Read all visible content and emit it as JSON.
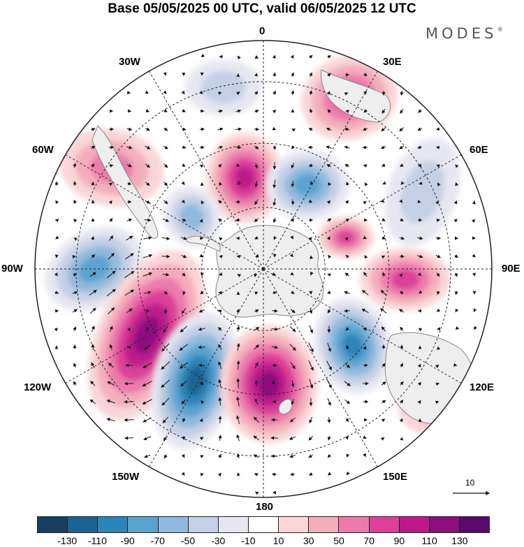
{
  "title": "Base 05/05/2025 00 UTC, valid 06/05/2025 12 UTC",
  "logo": "MODES",
  "logo_mark": "®",
  "projection": "south-polar-stereographic",
  "meridian_labels": {
    "lon_0": "0",
    "lon_30e": "30E",
    "lon_60e": "60E",
    "lon_90e": "90E",
    "lon_120e": "120E",
    "lon_150e": "150E",
    "lon_180": "180",
    "lon_150w": "150W",
    "lon_120w": "120W",
    "lon_90w": "90W",
    "lon_60w": "60W",
    "lon_30w": "30W"
  },
  "reference_vector": "10",
  "colorbar": {
    "colors": [
      "#17405f",
      "#1c6393",
      "#2e84b8",
      "#5ba3cf",
      "#91b9db",
      "#c5d0e6",
      "#e7e7f1",
      "#ffffff",
      "#fad6d8",
      "#f4adbc",
      "#ec7bac",
      "#dc4098",
      "#bc1a8a",
      "#8e0f7e",
      "#5a0a6c"
    ],
    "ticks": [
      "-130",
      "-110",
      "-90",
      "-70",
      "-50",
      "-30",
      "-10",
      "10",
      "30",
      "50",
      "70",
      "90",
      "110",
      "130"
    ]
  },
  "anomaly_centers": [
    {
      "sign": "+",
      "value": 80,
      "pos": "near 0/30E, mid-latitudes"
    },
    {
      "sign": "-",
      "value": -40,
      "pos": "20W high"
    },
    {
      "sign": "+",
      "value": 70,
      "pos": "60W"
    },
    {
      "sign": "+",
      "value": 110,
      "pos": "10W"
    },
    {
      "sign": "-",
      "value": -80,
      "pos": "30E"
    },
    {
      "sign": "-",
      "value": -60,
      "pos": "60E"
    },
    {
      "sign": "-",
      "value": -50,
      "pos": "75W"
    },
    {
      "sign": "-",
      "value": -80,
      "pos": "100W"
    },
    {
      "sign": "+",
      "value": 80,
      "pos": "80E"
    },
    {
      "sign": "+",
      "value": 90,
      "pos": "95E"
    },
    {
      "sign": "+",
      "value": 120,
      "pos": "130W"
    },
    {
      "sign": "-",
      "value": -130,
      "pos": "155W"
    },
    {
      "sign": "+",
      "value": 120,
      "pos": "175E"
    },
    {
      "sign": "-",
      "value": -110,
      "pos": "135E"
    },
    {
      "sign": "+",
      "value": 40,
      "pos": "120E"
    }
  ]
}
